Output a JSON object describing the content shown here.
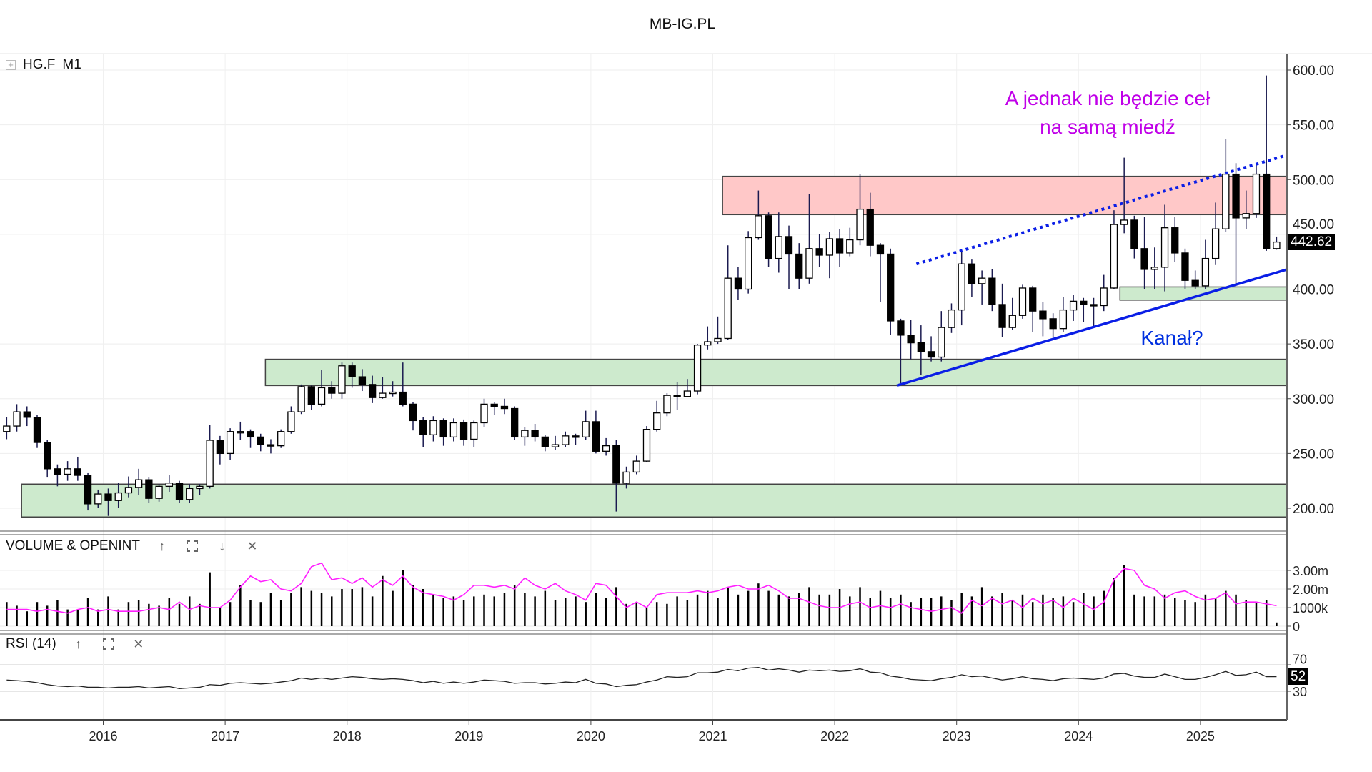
{
  "header": {
    "title": "MB-IG.PL"
  },
  "symbol": {
    "expand_icon": "plus-box-icon",
    "ticker": "HG.F",
    "timeframe": "M1"
  },
  "annotations": {
    "note_line1": "A jednak nie będzie ceł",
    "note_line2": "na samą miedź",
    "channel_label": "Kanał?",
    "note_color": "#c000e8",
    "channel_color": "#0030e0"
  },
  "panes": {
    "volume": {
      "label": "VOLUME & OPENINT",
      "icons": [
        "arrow-up-icon",
        "maximize-icon",
        "arrow-down-icon",
        "close-icon"
      ]
    },
    "rsi": {
      "label": "RSI (14)",
      "icons": [
        "arrow-up-icon",
        "maximize-icon",
        "close-icon"
      ],
      "last_value": "52"
    }
  },
  "chart_data": {
    "type": "candlestick",
    "title": "MB-IG.PL",
    "series_name": "HG.F M1",
    "start_month": "2015-03",
    "interval": "monthly",
    "last_price": "442.62",
    "first_open": 270,
    "close": [
      275,
      288,
      283,
      260,
      236,
      231,
      236,
      230,
      204,
      213,
      207,
      214,
      219,
      226,
      209,
      220,
      223,
      208,
      218,
      220,
      262,
      250,
      270,
      270,
      265,
      258,
      257,
      270,
      288,
      311,
      295,
      310,
      305,
      330,
      320,
      313,
      301,
      305,
      306,
      295,
      280,
      267,
      280,
      265,
      278,
      263,
      278,
      295,
      293,
      291,
      265,
      271,
      265,
      256,
      258,
      266,
      265,
      279,
      252,
      257,
      223,
      233,
      243,
      272,
      287,
      303,
      302,
      307,
      349,
      352,
      355,
      410,
      400,
      447,
      467,
      428,
      448,
      432,
      410,
      437,
      431,
      446,
      433,
      445,
      473,
      440,
      432,
      371,
      358,
      351,
      343,
      338,
      365,
      381,
      423,
      405,
      410,
      386,
      365,
      376,
      401,
      380,
      373,
      364,
      381,
      389,
      386,
      385,
      401,
      459,
      463,
      437,
      418,
      420,
      456,
      433,
      408,
      403,
      428,
      455,
      505,
      465,
      469,
      505,
      437,
      443
    ],
    "high": [
      283,
      295,
      293,
      285,
      262,
      240,
      243,
      247,
      232,
      217,
      218,
      223,
      229,
      236,
      228,
      222,
      230,
      225,
      222,
      222,
      276,
      266,
      273,
      279,
      272,
      268,
      263,
      272,
      293,
      313,
      312,
      326,
      316,
      333,
      333,
      327,
      321,
      320,
      316,
      333,
      297,
      283,
      284,
      282,
      282,
      281,
      280,
      300,
      297,
      300,
      293,
      274,
      277,
      267,
      266,
      270,
      268,
      289,
      289,
      264,
      262,
      238,
      248,
      275,
      298,
      305,
      315,
      318,
      350,
      366,
      375,
      440,
      420,
      453,
      490,
      470,
      470,
      458,
      442,
      487,
      450,
      452,
      455,
      456,
      505,
      488,
      442,
      437,
      373,
      372,
      367,
      357,
      380,
      387,
      435,
      427,
      417,
      418,
      405,
      392,
      404,
      403,
      388,
      378,
      393,
      395,
      392,
      392,
      413,
      472,
      520,
      467,
      466,
      438,
      477,
      466,
      437,
      417,
      445,
      479,
      537,
      515,
      490,
      515,
      595,
      448
    ],
    "low": [
      263,
      270,
      275,
      255,
      228,
      220,
      225,
      225,
      198,
      200,
      193,
      200,
      210,
      212,
      205,
      206,
      215,
      205,
      205,
      212,
      218,
      240,
      244,
      262,
      255,
      252,
      250,
      255,
      268,
      286,
      290,
      293,
      300,
      300,
      310,
      307,
      296,
      300,
      302,
      293,
      271,
      256,
      261,
      257,
      261,
      257,
      256,
      274,
      285,
      286,
      262,
      257,
      261,
      252,
      253,
      256,
      258,
      262,
      250,
      248,
      197,
      218,
      231,
      242,
      270,
      284,
      290,
      303,
      304,
      345,
      350,
      354,
      390,
      396,
      445,
      420,
      415,
      400,
      400,
      405,
      420,
      410,
      420,
      430,
      440,
      430,
      388,
      358,
      312,
      336,
      322,
      334,
      334,
      360,
      367,
      393,
      386,
      380,
      356,
      363,
      373,
      361,
      357,
      356,
      361,
      371,
      370,
      366,
      380,
      400,
      451,
      428,
      400,
      400,
      398,
      425,
      400,
      400,
      400,
      422,
      452,
      403,
      455,
      465,
      435,
      436
    ],
    "volume_millions": [
      1.3,
      1.1,
      0.8,
      1.3,
      1.1,
      1.4,
      0.9,
      0.9,
      1.5,
      0.9,
      1.6,
      0.9,
      1.3,
      1.4,
      1.2,
      1.1,
      1.5,
      1.2,
      1.6,
      1.2,
      2.9,
      1.0,
      1.3,
      2.2,
      1.4,
      1.3,
      1.8,
      1.4,
      1.8,
      2.1,
      1.9,
      1.8,
      1.6,
      2.0,
      2.0,
      2.1,
      1.6,
      2.7,
      1.9,
      3.0,
      2.2,
      2.0,
      1.7,
      1.5,
      1.6,
      1.4,
      1.6,
      1.7,
      1.6,
      1.8,
      2.2,
      1.8,
      1.6,
      1.9,
      1.4,
      1.5,
      1.6,
      1.3,
      1.8,
      1.5,
      2.1,
      1.2,
      1.3,
      1.0,
      1.3,
      1.2,
      1.6,
      1.4,
      1.7,
      1.9,
      1.5,
      2.1,
      1.7,
      1.9,
      2.3,
      1.9,
      1.7,
      1.6,
      1.8,
      2.1,
      1.7,
      1.7,
      2.0,
      1.6,
      2.1,
      1.5,
      1.9,
      1.5,
      1.7,
      1.3,
      1.5,
      1.5,
      1.6,
      1.4,
      1.8,
      1.6,
      2.1,
      1.6,
      1.8,
      1.4,
      1.7,
      1.3,
      1.7,
      1.5,
      1.6,
      1.3,
      1.8,
      1.6,
      1.9,
      2.6,
      3.3,
      1.7,
      1.6,
      1.6,
      1.7,
      1.5,
      1.4,
      1.3,
      1.7,
      1.5,
      1.9,
      1.7,
      1.4,
      1.3,
      1.4,
      0.2
    ],
    "open_interest_millions": [
      0.9,
      0.9,
      0.9,
      0.8,
      0.9,
      0.8,
      0.7,
      0.9,
      1.0,
      0.8,
      0.9,
      0.8,
      0.8,
      0.8,
      0.9,
      1.0,
      0.9,
      1.3,
      0.9,
      1.1,
      1.0,
      1.0,
      1.4,
      2.1,
      2.7,
      2.4,
      2.5,
      2.0,
      1.9,
      2.3,
      3.2,
      3.4,
      2.5,
      2.6,
      2.3,
      2.6,
      2.1,
      2.5,
      2.2,
      2.7,
      2.1,
      1.8,
      1.7,
      1.6,
      1.4,
      1.7,
      2.2,
      2.2,
      2.1,
      2.2,
      2.0,
      2.6,
      2.2,
      2.0,
      2.3,
      1.9,
      1.7,
      1.4,
      2.3,
      2.2,
      1.6,
      1.0,
      1.3,
      1.0,
      1.7,
      1.8,
      1.8,
      1.8,
      1.9,
      1.8,
      1.9,
      2.1,
      2.2,
      2.0,
      2.0,
      2.2,
      1.9,
      1.5,
      1.5,
      1.3,
      1.1,
      1.0,
      1.0,
      1.2,
      1.3,
      1.0,
      1.1,
      1.0,
      1.2,
      1.0,
      0.9,
      0.8,
      0.9,
      1.0,
      0.7,
      1.4,
      1.1,
      1.5,
      1.2,
      1.4,
      1.0,
      1.5,
      1.2,
      1.4,
      1.0,
      1.5,
      1.2,
      0.9,
      1.3,
      2.5,
      3.1,
      3.0,
      2.2,
      2.0,
      1.5,
      1.8,
      1.9,
      1.6,
      1.4,
      1.5,
      1.8,
      1.2,
      1.3,
      1.3,
      1.2,
      1.1
    ],
    "rsi": [
      47,
      46,
      45,
      43,
      40,
      38,
      37,
      38,
      36,
      36,
      35,
      36,
      36,
      37,
      35,
      36,
      37,
      34,
      35,
      36,
      40,
      39,
      42,
      43,
      42,
      41,
      42,
      44,
      46,
      50,
      48,
      50,
      48,
      50,
      52,
      51,
      49,
      48,
      49,
      48,
      46,
      43,
      45,
      42,
      44,
      42,
      44,
      47,
      46,
      45,
      42,
      43,
      43,
      41,
      42,
      44,
      43,
      48,
      42,
      41,
      37,
      39,
      40,
      44,
      47,
      52,
      51,
      52,
      58,
      58,
      59,
      63,
      61,
      65,
      66,
      62,
      64,
      62,
      59,
      62,
      61,
      62,
      60,
      61,
      64,
      59,
      58,
      53,
      51,
      48,
      47,
      46,
      49,
      51,
      55,
      52,
      53,
      50,
      47,
      49,
      52,
      49,
      48,
      46,
      49,
      50,
      49,
      48,
      50,
      56,
      57,
      53,
      51,
      51,
      56,
      52,
      48,
      48,
      51,
      55,
      60,
      54,
      55,
      59,
      52,
      52
    ],
    "price_axis": {
      "ylim": [
        180,
        610
      ],
      "ticks": [
        "600.00",
        "550.00",
        "500.00",
        "450.00",
        "400.00",
        "350.00",
        "300.00",
        "250.00",
        "200.00"
      ],
      "tick_values": [
        600,
        550,
        500,
        450,
        400,
        350,
        300,
        250,
        200
      ]
    },
    "volume_axis": {
      "ticks": [
        "3.00m",
        "2.00m",
        "1000k",
        "0"
      ],
      "tick_values": [
        3,
        2,
        1,
        0
      ]
    },
    "rsi_axis": {
      "ticks": [
        "70",
        "30"
      ],
      "tick_values": [
        70,
        30
      ]
    },
    "x_axis": {
      "ticks": [
        "2016",
        "2017",
        "2018",
        "2019",
        "2020",
        "2021",
        "2022",
        "2023",
        "2024",
        "2025"
      ]
    },
    "zones": [
      {
        "name": "resistance-zone",
        "color": "#ffc8c8",
        "from": 2021.08,
        "price_low": 468,
        "price_high": 503
      },
      {
        "name": "support-zone-low",
        "color": "#cdeacd",
        "from": 2015.33,
        "price_low": 192,
        "price_high": 222
      },
      {
        "name": "support-zone-mid",
        "color": "#cdeacd",
        "from": 2017.33,
        "price_low": 312,
        "price_high": 336
      },
      {
        "name": "support-zone-high",
        "color": "#cdeacd",
        "from": 2024.34,
        "price_low": 390,
        "price_high": 402
      }
    ],
    "trendlines": [
      {
        "name": "channel-support-line",
        "style": "solid",
        "color": "#0a1ee6",
        "from": [
          2022.51,
          312
        ],
        "to": [
          2025.71,
          418
        ]
      },
      {
        "name": "channel-resistance-line",
        "style": "dotted",
        "color": "#0a1ee6",
        "from": [
          2022.67,
          423
        ],
        "to": [
          2025.7,
          522
        ]
      }
    ]
  }
}
